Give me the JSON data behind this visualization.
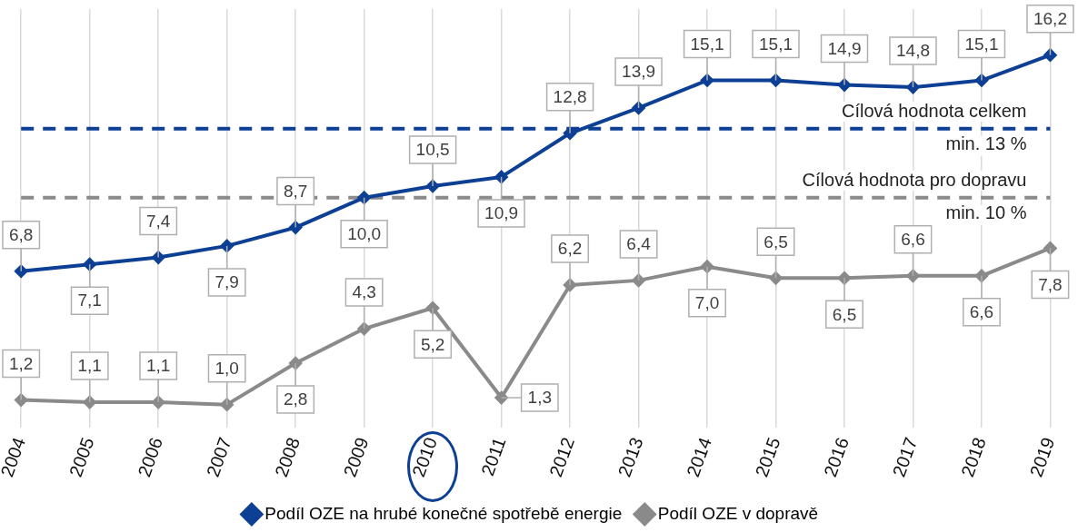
{
  "chart_data": {
    "type": "line",
    "categories": [
      "2004",
      "2005",
      "2006",
      "2007",
      "2008",
      "2009",
      "2010",
      "2011",
      "2012",
      "2013",
      "2014",
      "2015",
      "2016",
      "2017",
      "2018",
      "2019"
    ],
    "series": [
      {
        "name": "Podíl OZE na hrubé konečné spotřebě energie",
        "color": "#0d3f94",
        "values": [
          6.8,
          7.1,
          7.4,
          7.9,
          8.7,
          10.0,
          10.5,
          10.9,
          12.8,
          13.9,
          15.1,
          15.1,
          14.9,
          14.8,
          15.1,
          16.2
        ],
        "value_labels": [
          "6,8",
          "7,1",
          "7,4",
          "7,9",
          "8,7",
          "10,0",
          "10,5",
          "10,9",
          "12,8",
          "13,9",
          "15,1",
          "15,1",
          "14,9",
          "14,8",
          "15,1",
          "16,2"
        ]
      },
      {
        "name": "Podíl OZE v dopravě",
        "color": "#8a8a8a",
        "values": [
          1.2,
          1.1,
          1.1,
          1.0,
          2.8,
          4.3,
          5.2,
          1.3,
          6.2,
          6.4,
          7.0,
          6.5,
          6.5,
          6.6,
          6.6,
          7.8
        ],
        "value_labels": [
          "1,2",
          "1,1",
          "1,1",
          "1,0",
          "2,8",
          "4,3",
          "5,2",
          "1,3",
          "6,2",
          "6,4",
          "7,0",
          "6,5",
          "6,5",
          "6,6",
          "6,6",
          "7,8"
        ]
      }
    ],
    "ref_lines": [
      {
        "axis": "y",
        "value": 13,
        "label": "Cílová hodnota celkem\nmin. 13 %",
        "color": "#0d3f94",
        "line_style": "dashed"
      },
      {
        "axis": "y",
        "value": 10,
        "label": "Cílová hodnota pro dopravu\nmin. 10 %",
        "color": "#8a8a8a",
        "line_style": "dashed"
      }
    ],
    "ylim": [
      0,
      18.2
    ],
    "grid": "x",
    "legend": "bottom",
    "marker": "diamond",
    "line_style": "solid"
  }
}
